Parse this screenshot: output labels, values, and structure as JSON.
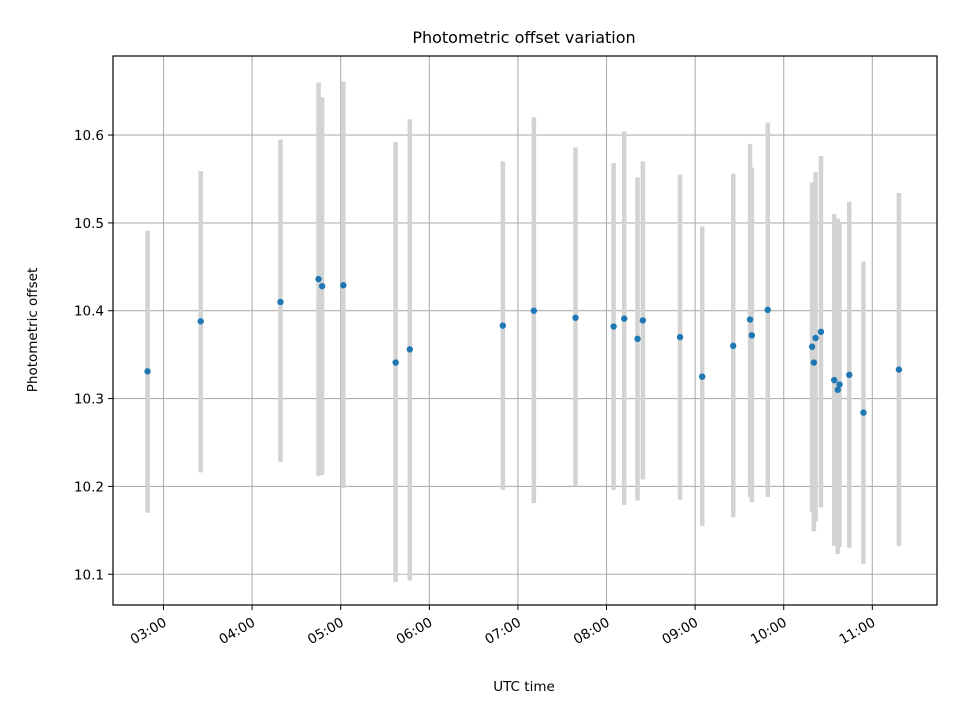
{
  "chart_data": {
    "type": "scatter",
    "title": "Photometric offset variation",
    "xlabel": "UTC time",
    "ylabel": "Photometric offset",
    "x_unit": "hours UTC",
    "xlim": [
      2.43,
      11.73
    ],
    "ylim": [
      10.065,
      10.69
    ],
    "grid": true,
    "x_ticks": [
      {
        "value": 3,
        "label": "03:00"
      },
      {
        "value": 4,
        "label": "04:00"
      },
      {
        "value": 5,
        "label": "05:00"
      },
      {
        "value": 6,
        "label": "06:00"
      },
      {
        "value": 7,
        "label": "07:00"
      },
      {
        "value": 8,
        "label": "08:00"
      },
      {
        "value": 9,
        "label": "09:00"
      },
      {
        "value": 10,
        "label": "10:00"
      },
      {
        "value": 11,
        "label": "11:00"
      }
    ],
    "y_ticks": [
      {
        "value": 10.1,
        "label": "10.1"
      },
      {
        "value": 10.2,
        "label": "10.2"
      },
      {
        "value": 10.3,
        "label": "10.3"
      },
      {
        "value": 10.4,
        "label": "10.4"
      },
      {
        "value": 10.5,
        "label": "10.5"
      },
      {
        "value": 10.6,
        "label": "10.6"
      }
    ],
    "colors": {
      "point": "#1f77b4",
      "errorbar": "#d3d3d3",
      "grid": "#b0b0b0"
    },
    "points": [
      {
        "x": 2.82,
        "y": 10.331,
        "ylow": 10.17,
        "yhigh": 10.491
      },
      {
        "x": 3.42,
        "y": 10.388,
        "ylow": 10.216,
        "yhigh": 10.559
      },
      {
        "x": 4.32,
        "y": 10.41,
        "ylow": 10.228,
        "yhigh": 10.595
      },
      {
        "x": 4.75,
        "y": 10.436,
        "ylow": 10.212,
        "yhigh": 10.66
      },
      {
        "x": 4.79,
        "y": 10.428,
        "ylow": 10.213,
        "yhigh": 10.643
      },
      {
        "x": 5.03,
        "y": 10.429,
        "ylow": 10.198,
        "yhigh": 10.661
      },
      {
        "x": 5.62,
        "y": 10.341,
        "ylow": 10.091,
        "yhigh": 10.592
      },
      {
        "x": 5.78,
        "y": 10.356,
        "ylow": 10.093,
        "yhigh": 10.618
      },
      {
        "x": 6.83,
        "y": 10.383,
        "ylow": 10.196,
        "yhigh": 10.57
      },
      {
        "x": 7.18,
        "y": 10.4,
        "ylow": 10.181,
        "yhigh": 10.62
      },
      {
        "x": 7.65,
        "y": 10.392,
        "ylow": 10.2,
        "yhigh": 10.586
      },
      {
        "x": 8.08,
        "y": 10.382,
        "ylow": 10.196,
        "yhigh": 10.568
      },
      {
        "x": 8.2,
        "y": 10.391,
        "ylow": 10.179,
        "yhigh": 10.604
      },
      {
        "x": 8.35,
        "y": 10.368,
        "ylow": 10.184,
        "yhigh": 10.552
      },
      {
        "x": 8.41,
        "y": 10.389,
        "ylow": 10.208,
        "yhigh": 10.57
      },
      {
        "x": 8.83,
        "y": 10.37,
        "ylow": 10.185,
        "yhigh": 10.555
      },
      {
        "x": 9.08,
        "y": 10.325,
        "ylow": 10.155,
        "yhigh": 10.496
      },
      {
        "x": 9.43,
        "y": 10.36,
        "ylow": 10.165,
        "yhigh": 10.556
      },
      {
        "x": 9.62,
        "y": 10.39,
        "ylow": 10.188,
        "yhigh": 10.59
      },
      {
        "x": 9.64,
        "y": 10.372,
        "ylow": 10.182,
        "yhigh": 10.563
      },
      {
        "x": 9.82,
        "y": 10.401,
        "ylow": 10.188,
        "yhigh": 10.614
      },
      {
        "x": 10.32,
        "y": 10.359,
        "ylow": 10.171,
        "yhigh": 10.546
      },
      {
        "x": 10.34,
        "y": 10.341,
        "ylow": 10.149,
        "yhigh": 10.533
      },
      {
        "x": 10.36,
        "y": 10.369,
        "ylow": 10.16,
        "yhigh": 10.558
      },
      {
        "x": 10.42,
        "y": 10.376,
        "ylow": 10.176,
        "yhigh": 10.576
      },
      {
        "x": 10.57,
        "y": 10.321,
        "ylow": 10.132,
        "yhigh": 10.51
      },
      {
        "x": 10.61,
        "y": 10.31,
        "ylow": 10.123,
        "yhigh": 10.505
      },
      {
        "x": 10.63,
        "y": 10.316,
        "ylow": 10.131,
        "yhigh": 10.5
      },
      {
        "x": 10.74,
        "y": 10.327,
        "ylow": 10.13,
        "yhigh": 10.524
      },
      {
        "x": 10.9,
        "y": 10.284,
        "ylow": 10.112,
        "yhigh": 10.456
      },
      {
        "x": 11.3,
        "y": 10.333,
        "ylow": 10.132,
        "yhigh": 10.534
      }
    ]
  }
}
